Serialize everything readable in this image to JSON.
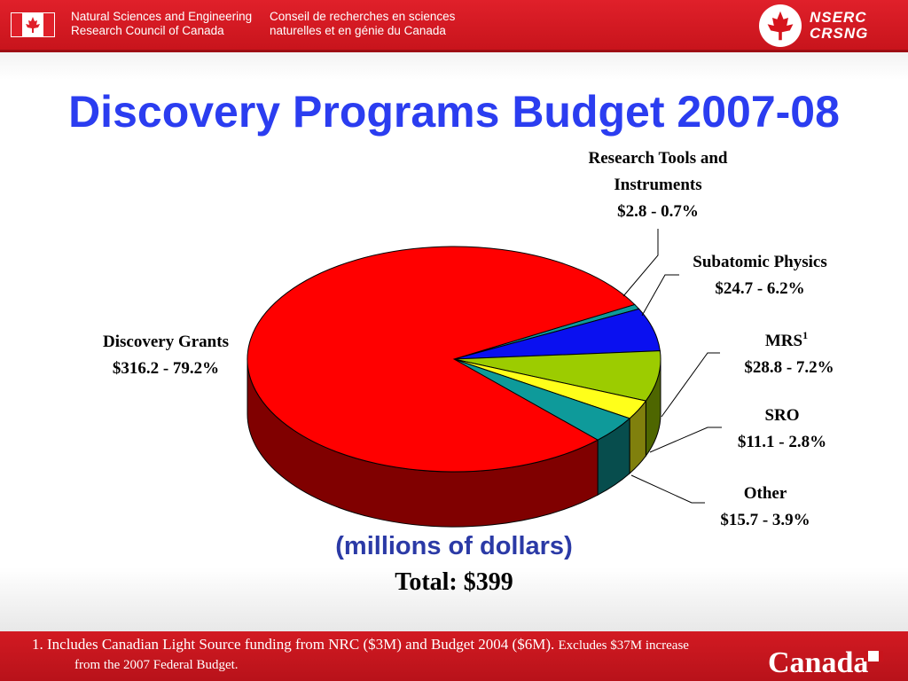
{
  "header": {
    "en_line1": "Natural Sciences and Engineering",
    "en_line2": "Research Council of Canada",
    "fr_line1": "Conseil de recherches en sciences",
    "fr_line2": "naturelles et en génie du Canada",
    "logo_line1": "NSERC",
    "logo_line2": "CRSNG"
  },
  "page": {
    "title": "Discovery Programs Budget 2007-08",
    "subtitle": "(millions of dollars)",
    "total": "Total: $399"
  },
  "footer": {
    "footnote_main": "1. Includes Canadian Light Source funding from NRC ($3M) and Budget 2004 ($6M).",
    "footnote_small": "Excludes $37M increase",
    "footnote_line2": "from the 2007 Federal Budget.",
    "wordmark": "Canada"
  },
  "chart_data": {
    "type": "pie",
    "title": "Discovery Programs Budget 2007-08",
    "unit": "millions of dollars",
    "total": 399,
    "slices": [
      {
        "label": "Research Tools and Instruments",
        "value": 2.8,
        "percent": 0.7,
        "label_text": "$2.8 - 0.7%",
        "color": "#0e9a9a"
      },
      {
        "label": "Subatomic Physics",
        "value": 24.7,
        "percent": 6.2,
        "label_text": "$24.7 - 6.2%",
        "color": "#0a10f0"
      },
      {
        "label": "MRS",
        "superscript": "1",
        "value": 28.8,
        "percent": 7.2,
        "label_text": "$28.8 - 7.2%",
        "color": "#9ccc00"
      },
      {
        "label": "SRO",
        "value": 11.1,
        "percent": 2.8,
        "label_text": "$11.1 - 2.8%",
        "color": "#ffff1a"
      },
      {
        "label": "Other",
        "value": 15.7,
        "percent": 3.9,
        "label_text": "$15.7 - 3.9%",
        "color": "#0e9a9a"
      },
      {
        "label": "Discovery Grants",
        "value": 316.2,
        "percent": 79.2,
        "label_text": "$316.2 - 79.2%",
        "color": "#ff0000"
      }
    ]
  }
}
